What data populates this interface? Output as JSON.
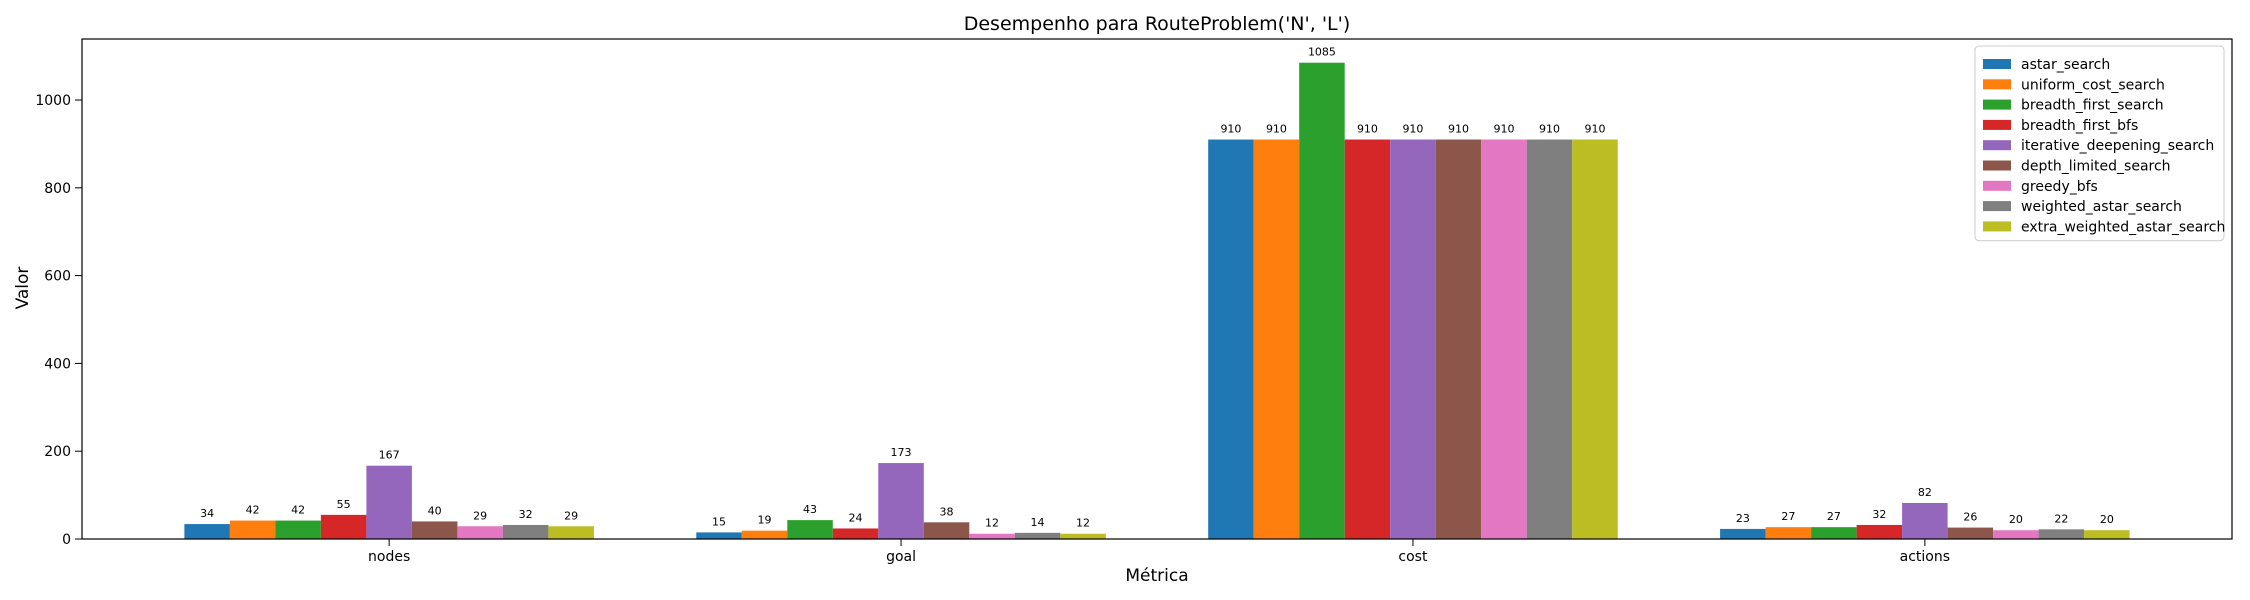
{
  "chart_data": {
    "type": "bar",
    "title": "Desempenho para RouteProblem('N', 'L')",
    "xlabel": "Métrica",
    "ylabel": "Valor",
    "categories": [
      "nodes",
      "goal",
      "cost",
      "actions"
    ],
    "ylim": [
      0,
      1139
    ],
    "yticks": [
      0,
      200,
      400,
      600,
      800,
      1000
    ],
    "legend_position": "top-right",
    "grid": false,
    "series": [
      {
        "name": "astar_search",
        "color": "#1f77b4",
        "values": [
          34,
          15,
          910,
          23
        ]
      },
      {
        "name": "uniform_cost_search",
        "color": "#ff7f0e",
        "values": [
          42,
          19,
          910,
          27
        ]
      },
      {
        "name": "breadth_first_search",
        "color": "#2ca02c",
        "values": [
          42,
          43,
          1085,
          27
        ]
      },
      {
        "name": "breadth_first_bfs",
        "color": "#d62728",
        "values": [
          55,
          24,
          910,
          32
        ]
      },
      {
        "name": "iterative_deepening_search",
        "color": "#9467bd",
        "values": [
          167,
          173,
          910,
          82
        ]
      },
      {
        "name": "depth_limited_search",
        "color": "#8c564b",
        "values": [
          40,
          38,
          910,
          26
        ]
      },
      {
        "name": "greedy_bfs",
        "color": "#e377c2",
        "values": [
          29,
          12,
          910,
          20
        ]
      },
      {
        "name": "weighted_astar_search",
        "color": "#7f7f7f",
        "values": [
          32,
          14,
          910,
          22
        ]
      },
      {
        "name": "extra_weighted_astar_search",
        "color": "#bcbd22",
        "values": [
          29,
          12,
          910,
          20
        ]
      }
    ]
  }
}
